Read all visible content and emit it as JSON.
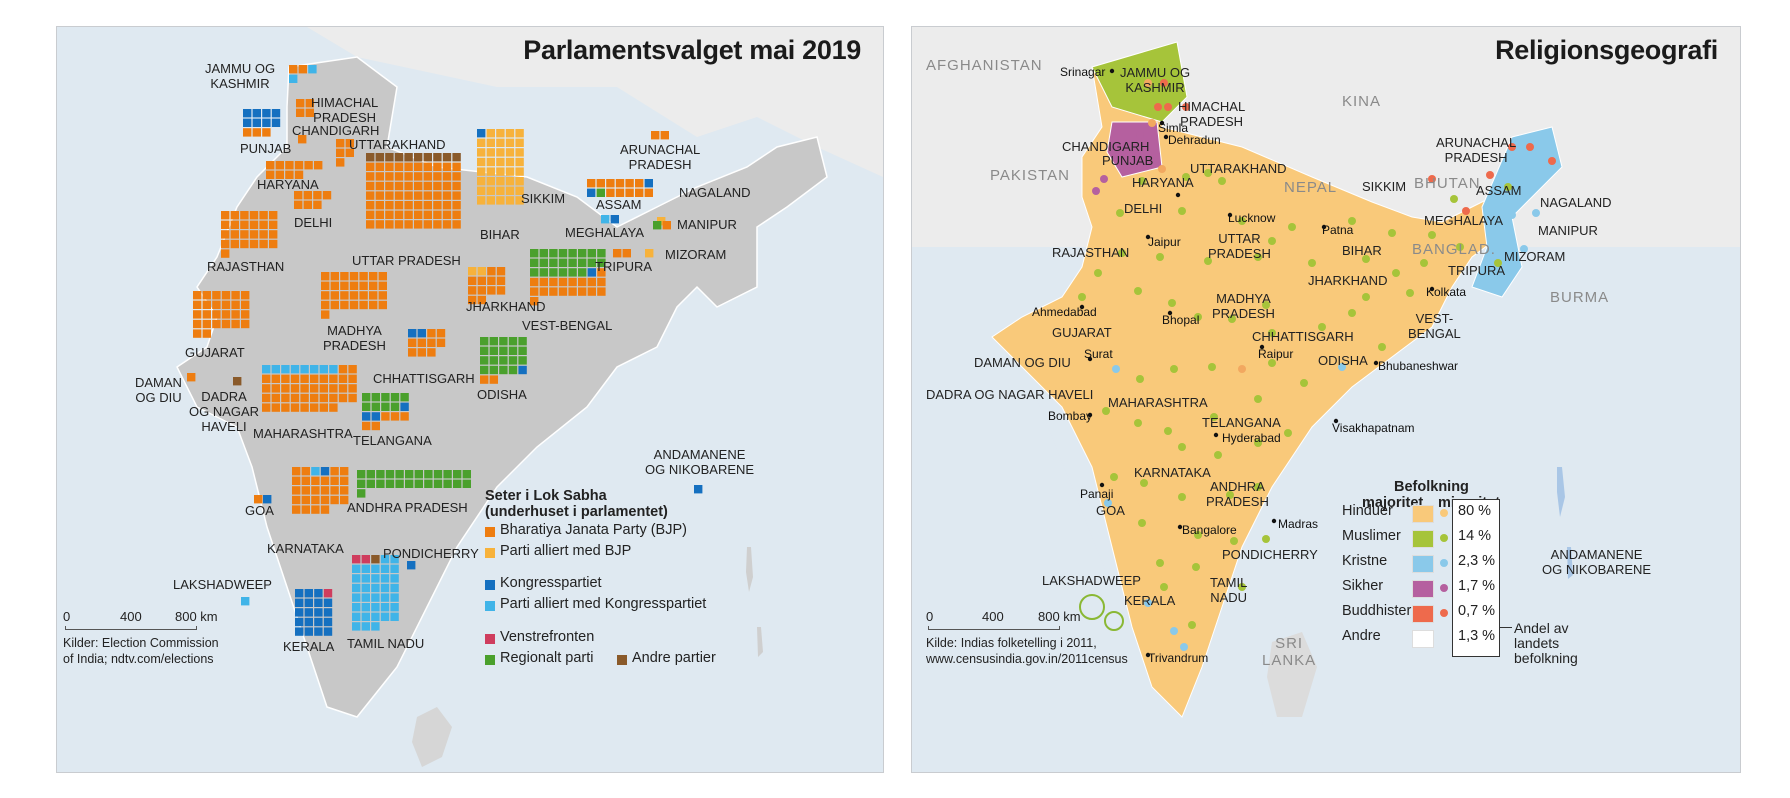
{
  "left": {
    "title": "Parlamentsvalget mai 2019",
    "colors": {
      "bjp": "#ee7d10",
      "bjp_allied": "#f7b23b",
      "congress": "#1570c0",
      "congress_allied": "#40b4e8",
      "left": "#cf3d5e",
      "regional": "#4aa02c",
      "other": "#8a5a2a",
      "land": "#c8c8c8",
      "sea": "#dfe9f1"
    },
    "labels": {
      "jammu": "JAMMU OG\nKASHMIR",
      "himachal": "HIMACHAL\nPRADESH",
      "chandigarh": "CHANDIGARH",
      "punjab": "PUNJAB",
      "uttarakhand": "UTTARAKHAND",
      "haryana": "HARYANA",
      "delhi": "DELHI",
      "rajasthan": "RAJASTHAN",
      "uttar_pradesh": "UTTAR PRADESH",
      "bihar": "BIHAR",
      "sikkim": "SIKKIM",
      "arunachal": "ARUNACHAL\nPRADESH",
      "assam": "ASSAM",
      "nagaland": "NAGALAND",
      "meghalaya": "MEGHALAYA",
      "manipur": "MANIPUR",
      "tripura": "TRIPURA",
      "mizoram": "MIZORAM",
      "jharkhand": "JHARKHAND",
      "vest_bengal": "VEST-BENGAL",
      "gujarat": "GUJARAT",
      "madhya": "MADHYA\nPRADESH",
      "daman": "DAMAN\nOG DIU",
      "dadra": "DADRA\nOG NAGAR\nHAVELI",
      "chhattisgarh": "CHHATTISGARH",
      "odisha": "ODISHA",
      "maharashtra": "MAHARASHTRA",
      "telangana": "TELANGANA",
      "andaman": "ANDAMANENE\nOG NIKOBARENE",
      "goa": "GOA",
      "andhra": "ANDHRA PRADESH",
      "karnataka": "KARNATAKA",
      "pondicherry": "PONDICHERRY",
      "lakshadweep": "LAKSHADWEEP",
      "kerala": "KERALA",
      "tamil_nadu": "TAMIL NADU"
    },
    "legend": {
      "title": "Seter i Lok Sabha\n(underhuset i parlamentet)",
      "items": [
        "Bharatiya Janata Party (BJP)",
        "Parti alliert med BJP",
        "Kongresspartiet",
        "Parti alliert med Kongresspartiet",
        "Venstrefronten",
        "Regionalt parti",
        "Andre partier"
      ]
    },
    "scale": {
      "t0": "0",
      "t1": "400",
      "t2": "800 km"
    },
    "source": "Kilder: Election Commission\nof India; ndtv.com/elections"
  },
  "right": {
    "title": "Religionsgeografi",
    "colors": {
      "hindu": "#f9c97a",
      "muslim": "#a6c43a",
      "christian": "#8ac9ea",
      "sikh": "#b5609f",
      "buddhist": "#ee6a4c",
      "other": "#ffffff"
    },
    "countries": {
      "afghanistan": "AFGHANISTAN",
      "pakistan": "PAKISTAN",
      "kina": "KINA",
      "nepal": "NEPAL",
      "bhutan": "BHUTAN",
      "banglad": "BANGLAD.",
      "burma": "BURMA",
      "sri_lanka": "SRI\nLANKA"
    },
    "labels": {
      "jammu": "JAMMU OG\nKASHMIR",
      "himachal": "HIMACHAL\nPRADESH",
      "chandigarh": "CHANDIGARH",
      "punjab": "PUNJAB",
      "uttarakhand": "UTTARAKHAND",
      "haryana": "HARYANA",
      "delhi": "DELHI",
      "rajasthan": "RAJASTHAN",
      "uttar_pradesh": "UTTAR\nPRADESH",
      "bihar": "BIHAR",
      "sikkim": "SIKKIM",
      "arunachal": "ARUNACHAL\nPRADESH",
      "assam": "ASSAM",
      "nagaland": "NAGALAND",
      "meghalaya": "MEGHALAYA",
      "manipur": "MANIPUR",
      "tripura": "TRIPURA",
      "mizoram": "MIZORAM",
      "jharkhand": "JHARKHAND",
      "vest_bengal": "VEST-\nBENGAL",
      "gujarat": "GUJARAT",
      "madhya": "MADHYA\nPRADESH",
      "chhattisgarh": "CHHATTISGARH",
      "odisha": "ODISHA",
      "daman": "DAMAN OG DIU",
      "dadra": "DADRA OG NAGAR HAVELI",
      "maharashtra": "MAHARASHTRA",
      "telangana": "TELANGANA",
      "karnataka": "KARNATAKA",
      "andhra": "ANDHRA\nPRADESH",
      "goa": "GOA",
      "pondicherry": "PONDICHERRY",
      "tamil_nadu": "TAMIL\nNADU",
      "kerala": "KERALA",
      "lakshadweep": "LAKSHADWEEP",
      "andaman": "ANDAMANENE\nOG NIKOBARENE"
    },
    "cities": {
      "srinagar": "Srinagar",
      "simla": "Simla",
      "dehradun": "Dehradun",
      "lucknow": "Lucknow",
      "patna": "Patna",
      "jaipur": "Jaipur",
      "kolkata": "Kolkata",
      "ahmedabad": "Ahmedabad",
      "bhopal": "Bhopal",
      "raipur": "Raipur",
      "surat": "Surat",
      "bhubaneshwar": "Bhubaneshwar",
      "bombay": "Bombay",
      "hyderabad": "Hyderabad",
      "visakhapatnam": "Visakhapatnam",
      "panaji": "Panaji",
      "madras": "Madras",
      "bangalore": "Bangalore",
      "trivandrum": "Trivandrum"
    },
    "legend": {
      "head": "Befolkning",
      "col1": "majoritet",
      "col2": "minoritet",
      "rows": [
        {
          "label": "Hinduer",
          "pct": "80 %"
        },
        {
          "label": "Muslimer",
          "pct": "14 %"
        },
        {
          "label": "Kristne",
          "pct": "2,3 %"
        },
        {
          "label": "Sikher",
          "pct": "1,7 %"
        },
        {
          "label": "Buddhister",
          "pct": "0,7 %"
        },
        {
          "label": "Andre",
          "pct": "1,3 %"
        }
      ],
      "share": "Andel av\nlandets\nbefolkning"
    },
    "scale": {
      "t0": "0",
      "t1": "400",
      "t2": "800 km"
    },
    "source": "Kilde: Indias folketelling i 2011,\nwww.censusindia.gov.in/2011census"
  }
}
